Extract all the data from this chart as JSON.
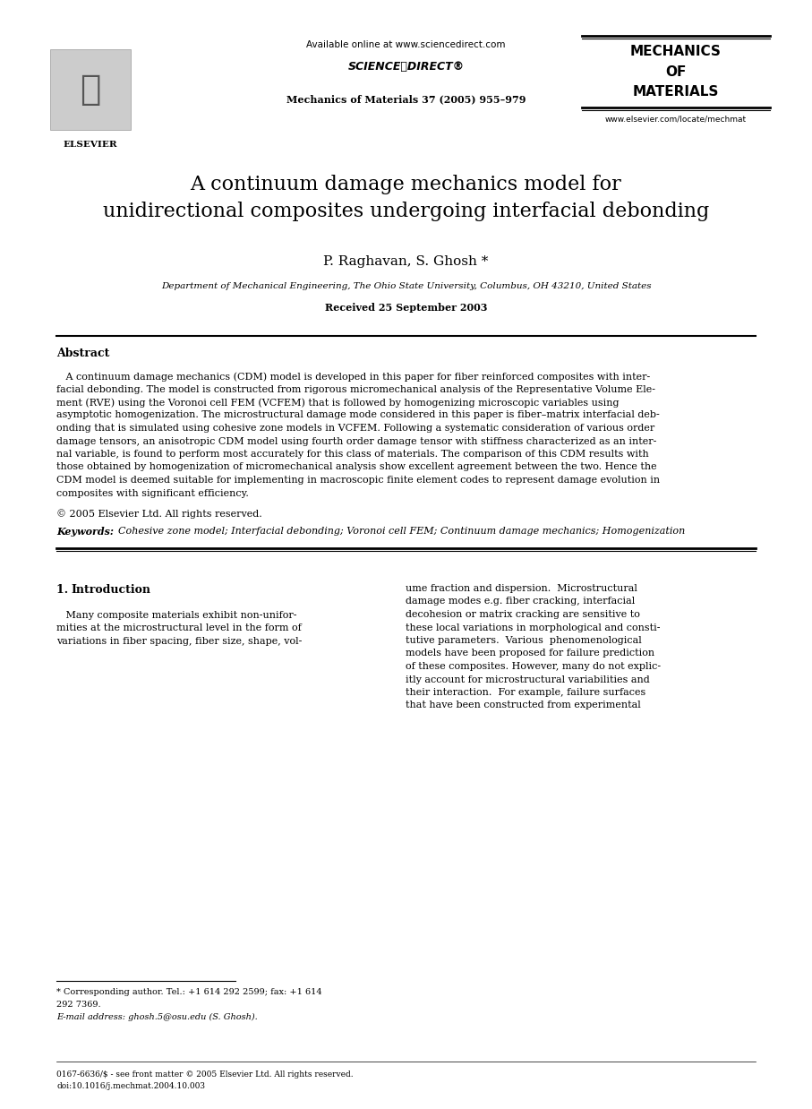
{
  "bg_color": "#ffffff",
  "page_width": 9.07,
  "page_height": 12.38,
  "dpi": 100,
  "header": {
    "available_online": "Available online at www.sciencedirect.com",
    "sciencedirect_logo": "SCIENCEⓐDIRECT®",
    "journal_ref": "Mechanics of Materials 37 (2005) 955–979",
    "journal_name_line1": "MECHANICS",
    "journal_name_line2": "OF",
    "journal_name_line3": "MATERIALS",
    "journal_url": "www.elsevier.com/locate/mechmat",
    "elsevier_label": "ELSEVIER"
  },
  "title_line1": "A continuum damage mechanics model for",
  "title_line2": "unidirectional composites undergoing interfacial debonding",
  "authors": "P. Raghavan, S. Ghosh *",
  "affiliation": "Department of Mechanical Engineering, The Ohio State University, Columbus, OH 43210, United States",
  "received": "Received 25 September 2003",
  "abstract_title": "Abstract",
  "abstract_lines": [
    "   A continuum damage mechanics (CDM) model is developed in this paper for fiber reinforced composites with inter-",
    "facial debonding. The model is constructed from rigorous micromechanical analysis of the Representative Volume Ele-",
    "ment (RVE) using the Voronoi cell FEM (VCFEM) that is followed by homogenizing microscopic variables using",
    "asymptotic homogenization. The microstructural damage mode considered in this paper is fiber–matrix interfacial deb-",
    "onding that is simulated using cohesive zone models in VCFEM. Following a systematic consideration of various order",
    "damage tensors, an anisotropic CDM model using fourth order damage tensor with stiffness characterized as an inter-",
    "nal variable, is found to perform most accurately for this class of materials. The comparison of this CDM results with",
    "those obtained by homogenization of micromechanical analysis show excellent agreement between the two. Hence the",
    "CDM model is deemed suitable for implementing in macroscopic finite element codes to represent damage evolution in",
    "composites with significant efficiency."
  ],
  "copyright": "© 2005 Elsevier Ltd. All rights reserved.",
  "keywords_label": "Keywords:",
  "keywords": "  Cohesive zone model; Interfacial debonding; Voronoi cell FEM; Continuum damage mechanics; Homogenization",
  "section1_title_normal": "1. ",
  "section1_title_bold": "Introduction",
  "intro_col1_lines": [
    "   Many composite materials exhibit non-unifor-",
    "mities at the microstructural level in the form of",
    "variations in fiber spacing, fiber size, shape, vol-"
  ],
  "intro_col2_lines": [
    "ume fraction and dispersion.  Microstructural",
    "damage modes e.g. fiber cracking, interfacial",
    "decohesion or matrix cracking are sensitive to",
    "these local variations in morphological and consti-",
    "tutive parameters.  Various  phenomenological",
    "models have been proposed for failure prediction",
    "of these composites. However, many do not explic-",
    "itly account for microstructural variabilities and",
    "their interaction.  For example, failure surfaces",
    "that have been constructed from experimental"
  ],
  "footnote_line1": "* Corresponding author. Tel.: +1 614 292 2599; fax: +1 614",
  "footnote_line2": "292 7369.",
  "footnote_email": "E-mail address: ghosh.5@osu.edu (S. Ghosh).",
  "footer_issn": "0167-6636/$ - see front matter © 2005 Elsevier Ltd. All rights reserved.",
  "footer_doi": "doi:10.1016/j.mechmat.2004.10.003"
}
